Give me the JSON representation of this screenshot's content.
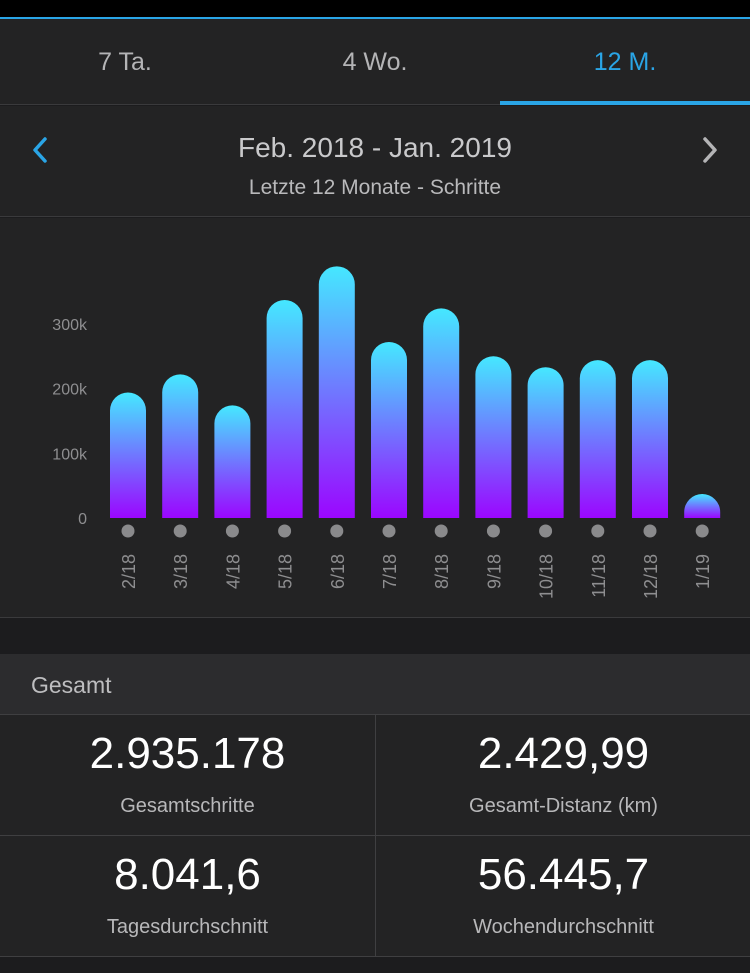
{
  "tabs": [
    {
      "label": "7 Ta."
    },
    {
      "label": "4 Wo."
    },
    {
      "label": "12 M."
    }
  ],
  "active_tab": "12 M.",
  "period": {
    "title": "Feb. 2018 - Jan. 2019",
    "subtitle": "Letzte 12 Monate - Schritte",
    "prev_icon": "chevron-left-icon",
    "next_icon": "chevron-right-icon"
  },
  "colors": {
    "accent": "#2aa5e6",
    "bar_top": "#45e8ff",
    "bar_bottom": "#9b06ff"
  },
  "chart_data": {
    "type": "bar",
    "categories": [
      "2/18",
      "3/18",
      "4/18",
      "5/18",
      "6/18",
      "7/18",
      "8/18",
      "9/18",
      "10/18",
      "11/18",
      "12/18",
      "1/19"
    ],
    "values": [
      194000,
      222000,
      174000,
      337000,
      389000,
      272000,
      324000,
      250000,
      233000,
      244000,
      244000,
      37000
    ],
    "yticks": [
      "0",
      "100k",
      "200k",
      "300k"
    ],
    "ytick_values": [
      0,
      100000,
      200000,
      300000
    ],
    "ylim": [
      0,
      400000
    ],
    "grid": false
  },
  "summary": {
    "title": "Gesamt",
    "stats": [
      {
        "value": "2.935.178",
        "label": "Gesamtschritte"
      },
      {
        "value": "2.429,99",
        "label": "Gesamt-Distanz (km)"
      },
      {
        "value": "8.041,6",
        "label": "Tagesdurchschnitt"
      },
      {
        "value": "56.445,7",
        "label": "Wochendurchschnitt"
      }
    ]
  }
}
